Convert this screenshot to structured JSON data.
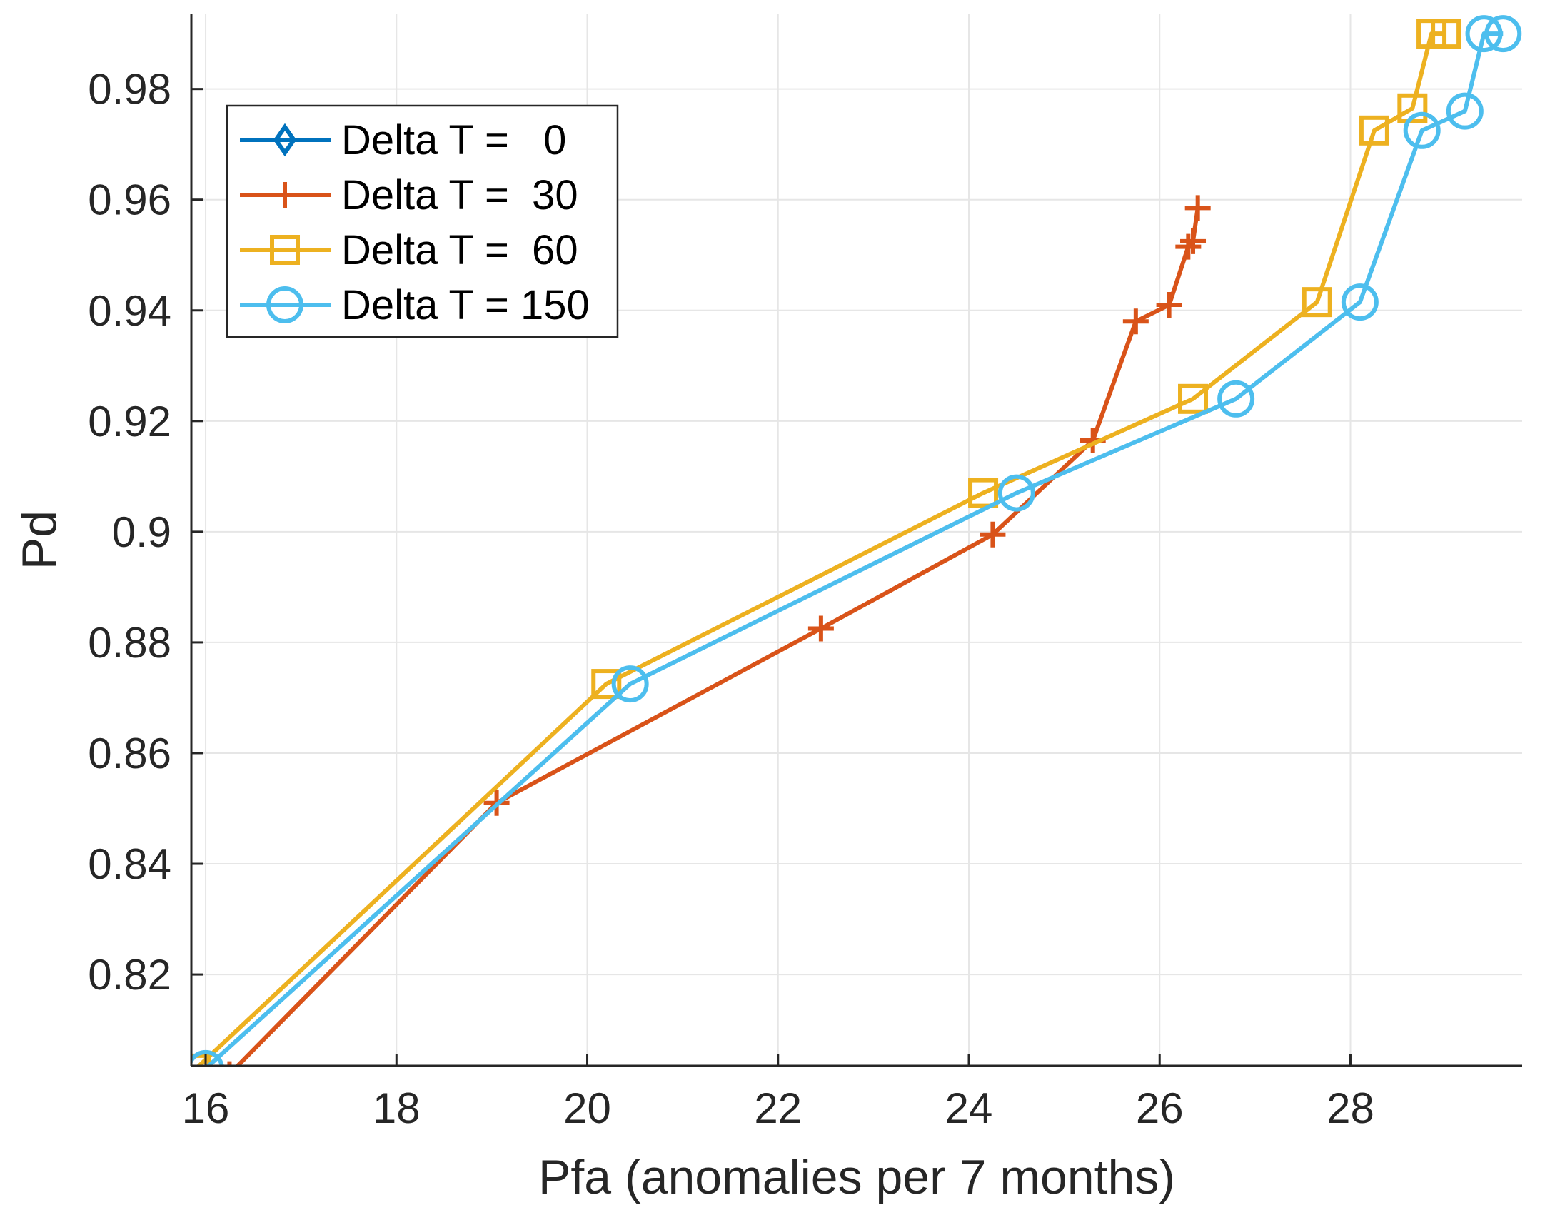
{
  "chart_data": {
    "type": "line",
    "title": "",
    "xlabel": "Pfa (anomalies per 7 months)",
    "ylabel": "Pd",
    "xlim": [
      15.85,
      29.8
    ],
    "ylim": [
      0.8035,
      0.9935
    ],
    "xticks": [
      16,
      18,
      20,
      22,
      24,
      26,
      28
    ],
    "yticks": [
      0.82,
      0.84,
      0.86,
      0.88,
      0.9,
      0.92,
      0.94,
      0.96,
      0.98
    ],
    "xtick_labels": [
      "16",
      "18",
      "20",
      "22",
      "24",
      "26",
      "28"
    ],
    "ytick_labels": [
      "0.82",
      "0.84",
      "0.86",
      "0.88",
      "0.9",
      "0.92",
      "0.94",
      "0.96",
      "0.98"
    ],
    "grid": true,
    "legend_position": "top-left",
    "series": [
      {
        "name": "Delta T =   0",
        "color": "#0072BD",
        "marker": "diamond",
        "points": []
      },
      {
        "name": "Delta T =  30",
        "color": "#D95319",
        "marker": "plus",
        "points": [
          [
            16.25,
            0.802
          ],
          [
            19.05,
            0.851
          ],
          [
            22.45,
            0.8825
          ],
          [
            24.25,
            0.8995
          ],
          [
            25.3,
            0.9165
          ],
          [
            25.75,
            0.938
          ],
          [
            26.1,
            0.941
          ],
          [
            26.3,
            0.9515
          ],
          [
            26.35,
            0.9525
          ],
          [
            26.4,
            0.9585
          ]
        ]
      },
      {
        "name": "Delta T =  60",
        "color": "#EDB120",
        "marker": "square",
        "points": [
          [
            15.9,
            0.803
          ],
          [
            20.2,
            0.8725
          ],
          [
            24.15,
            0.907
          ],
          [
            26.35,
            0.924
          ],
          [
            27.65,
            0.9415
          ],
          [
            28.25,
            0.9725
          ],
          [
            28.65,
            0.9765
          ],
          [
            28.85,
            0.99
          ],
          [
            29.0,
            0.99
          ]
        ]
      },
      {
        "name": "Delta T = 150",
        "color": "#4DBEEE",
        "marker": "circle",
        "points": [
          [
            16.0,
            0.803
          ],
          [
            20.45,
            0.8725
          ],
          [
            24.5,
            0.907
          ],
          [
            26.8,
            0.924
          ],
          [
            28.1,
            0.9415
          ],
          [
            28.75,
            0.9725
          ],
          [
            29.2,
            0.976
          ],
          [
            29.4,
            0.99
          ],
          [
            29.6,
            0.99
          ]
        ]
      }
    ]
  }
}
